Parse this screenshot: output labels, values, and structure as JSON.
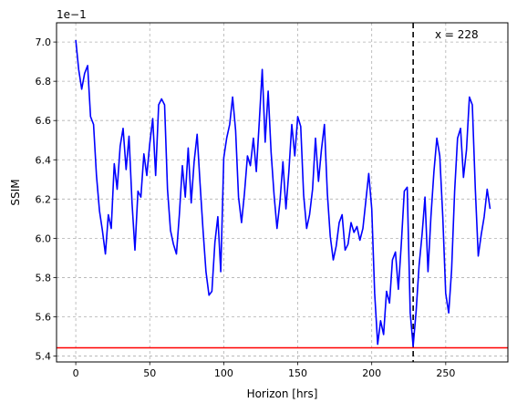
{
  "chart_data": {
    "type": "line",
    "title": "",
    "xlabel": "Horizon [hrs]",
    "ylabel": "SSIM",
    "offset_label": "1e−1",
    "xlim": [
      -13,
      292
    ],
    "ylim": [
      0.537,
      0.7098
    ],
    "x_ticks": [
      0,
      50,
      100,
      150,
      200,
      250
    ],
    "x_tick_labels": [
      "0",
      "50",
      "100",
      "150",
      "200",
      "250"
    ],
    "y_ticks": [
      0.54,
      0.56,
      0.58,
      0.6,
      0.62,
      0.64,
      0.66,
      0.68,
      0.7
    ],
    "y_tick_labels": [
      "5.4",
      "5.6",
      "5.8",
      "6.0",
      "6.2",
      "6.4",
      "6.6",
      "6.8",
      "7.0"
    ],
    "grid": true,
    "series": [
      {
        "color": "#0000ff",
        "x": [
          0,
          2,
          4,
          6,
          8,
          10,
          12,
          14,
          16,
          18,
          20,
          22,
          24,
          26,
          28,
          30,
          32,
          34,
          36,
          38,
          40,
          42,
          44,
          46,
          48,
          50,
          52,
          54,
          56,
          58,
          60,
          62,
          64,
          66,
          68,
          70,
          72,
          74,
          76,
          78,
          80,
          82,
          84,
          86,
          88,
          90,
          92,
          94,
          96,
          98,
          100,
          102,
          104,
          106,
          108,
          110,
          112,
          114,
          116,
          118,
          120,
          122,
          124,
          126,
          128,
          130,
          132,
          134,
          136,
          138,
          140,
          142,
          144,
          146,
          148,
          150,
          152,
          154,
          156,
          158,
          160,
          162,
          164,
          166,
          168,
          170,
          172,
          174,
          176,
          178,
          180,
          182,
          184,
          186,
          188,
          190,
          192,
          194,
          196,
          198,
          200,
          202,
          204,
          206,
          208,
          210,
          212,
          214,
          216,
          218,
          220,
          222,
          224,
          226,
          228,
          230,
          232,
          234,
          236,
          238,
          240,
          242,
          244,
          246,
          248,
          250,
          252,
          254,
          256,
          258,
          260,
          262,
          264,
          266,
          268,
          270,
          272,
          274,
          276,
          278,
          280
        ],
        "y": [
          0.701,
          0.686,
          0.676,
          0.684,
          0.688,
          0.662,
          0.658,
          0.632,
          0.614,
          0.604,
          0.592,
          0.612,
          0.605,
          0.638,
          0.625,
          0.647,
          0.656,
          0.635,
          0.652,
          0.618,
          0.594,
          0.624,
          0.621,
          0.643,
          0.632,
          0.648,
          0.661,
          0.632,
          0.668,
          0.671,
          0.668,
          0.625,
          0.604,
          0.597,
          0.592,
          0.612,
          0.637,
          0.621,
          0.646,
          0.618,
          0.639,
          0.653,
          0.628,
          0.604,
          0.583,
          0.571,
          0.573,
          0.598,
          0.611,
          0.583,
          0.641,
          0.651,
          0.658,
          0.672,
          0.655,
          0.621,
          0.608,
          0.623,
          0.642,
          0.637,
          0.651,
          0.634,
          0.659,
          0.686,
          0.649,
          0.675,
          0.644,
          0.622,
          0.605,
          0.619,
          0.639,
          0.615,
          0.634,
          0.658,
          0.642,
          0.662,
          0.657,
          0.622,
          0.605,
          0.612,
          0.625,
          0.651,
          0.629,
          0.645,
          0.658,
          0.623,
          0.601,
          0.589,
          0.596,
          0.608,
          0.612,
          0.594,
          0.597,
          0.608,
          0.603,
          0.606,
          0.599,
          0.605,
          0.619,
          0.633,
          0.615,
          0.572,
          0.546,
          0.558,
          0.551,
          0.573,
          0.567,
          0.589,
          0.593,
          0.574,
          0.597,
          0.624,
          0.626,
          0.562,
          0.545,
          0.563,
          0.586,
          0.602,
          0.621,
          0.583,
          0.611,
          0.634,
          0.651,
          0.642,
          0.611,
          0.572,
          0.562,
          0.584,
          0.624,
          0.651,
          0.656,
          0.631,
          0.645,
          0.672,
          0.668,
          0.625,
          0.591,
          0.602,
          0.611,
          0.625,
          0.615
        ]
      }
    ],
    "reference_lines": [
      {
        "orientation": "vertical",
        "value": 228,
        "color": "#000000",
        "style": "dashed",
        "label": "x = 228"
      },
      {
        "orientation": "horizontal",
        "value": 0.5442,
        "color": "#ff0000",
        "style": "solid"
      }
    ]
  }
}
